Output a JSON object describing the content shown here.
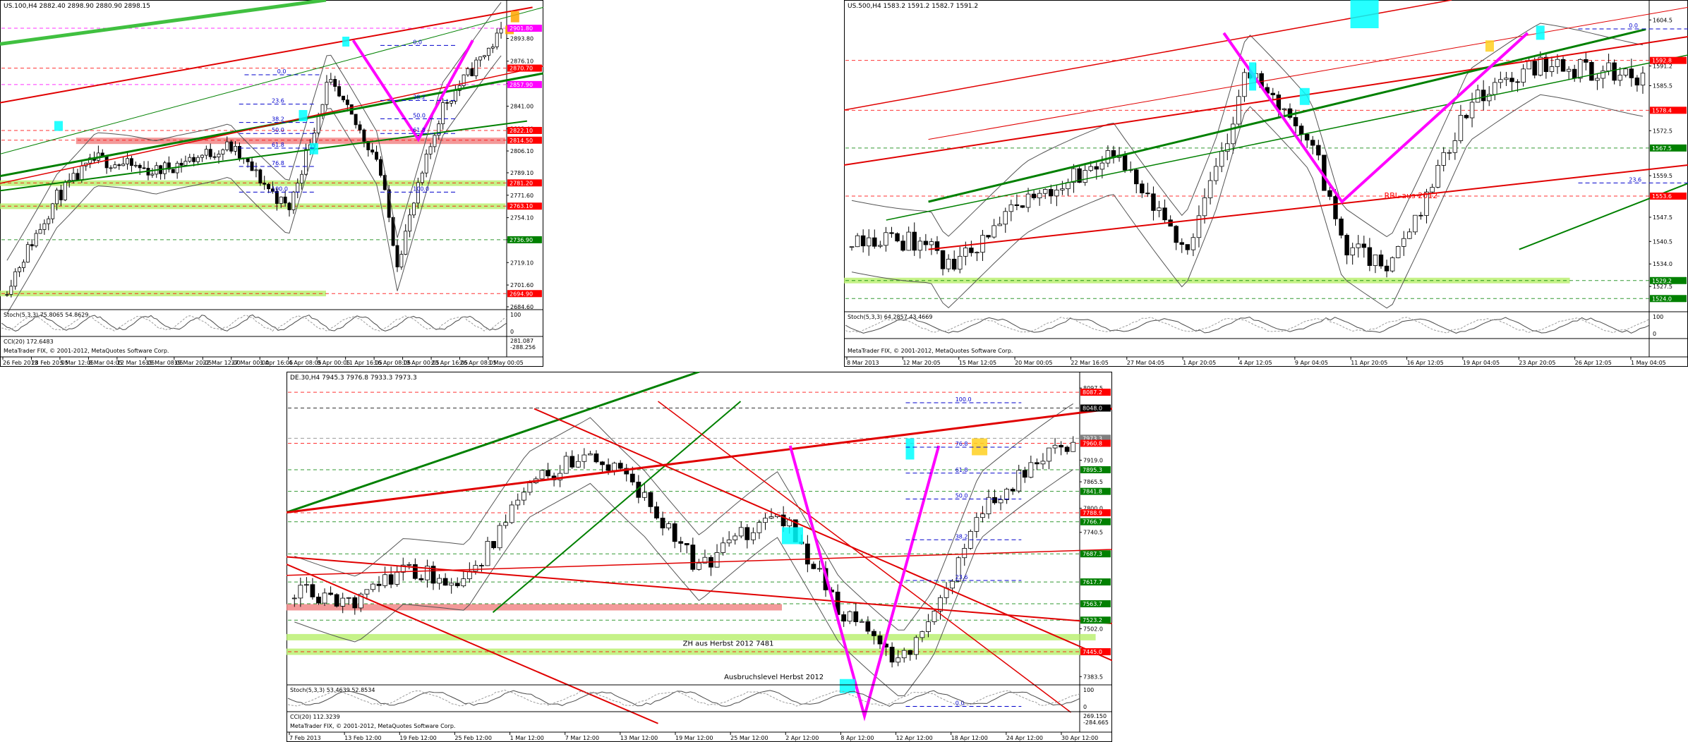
{
  "charts": [
    {
      "id": "us100",
      "header": "US.100,H4  2882.40 2898.90 2880.90 2898.15",
      "y_min": 2684.6,
      "y_max": 2915.0,
      "y_ticks": [
        "2893.80",
        "2876.10",
        "2858.60",
        "2841.00",
        "2823.40",
        "2806.10",
        "2789.10",
        "2771.60",
        "2754.10",
        "2736.90",
        "2719.10",
        "2701.60",
        "2684.60"
      ],
      "price_tags": [
        {
          "label": "2901.80",
          "value": 2901.8,
          "color": "#ff00ff"
        },
        {
          "label": "2870.70",
          "value": 2870.7,
          "color": "#ff0000"
        },
        {
          "label": "2857.90",
          "value": 2857.9,
          "color": "#ff00ff"
        },
        {
          "label": "2822.10",
          "value": 2822.1,
          "color": "#ff0000"
        },
        {
          "label": "2814.50",
          "value": 2814.5,
          "color": "#ff0000"
        },
        {
          "label": "2781.20",
          "value": 2781.2,
          "color": "#ff0000"
        },
        {
          "label": "2763.10",
          "value": 2763.1,
          "color": "#ff0000"
        },
        {
          "label": "2736.90",
          "value": 2736.9,
          "color": "#008000"
        },
        {
          "label": "2694.90",
          "value": 2694.9,
          "color": "#ff0000"
        }
      ],
      "fib_labels": [
        "0.0",
        "0.0",
        "23.6",
        "38.2",
        "50.0",
        "61.8",
        "76.8",
        "100.0",
        "100.0",
        "38.2",
        "50.0",
        "61.8"
      ],
      "x_labels": [
        "26 Feb 2013",
        "28 Feb 20:05",
        "5 Mar 12:05",
        "8 Mar 04:05",
        "12 Mar 16:05",
        "15 Mar 08:05",
        "19 Mar 20:05",
        "22 Mar 12:00",
        "27 Mar 00:00",
        "1 Apr 16:05",
        "4 Apr 08:05",
        "9 Apr 00:05",
        "11 Apr 16:05",
        "16 Apr 08:05",
        "19 Apr 00:05",
        "23 Apr 16:05",
        "26 Apr 08:05",
        "1 May 00:05"
      ],
      "stoch_label": "Stoch(5,3,3) 75.8065 54.8629",
      "stoch_ticks": [
        "100",
        "0"
      ],
      "cci_label": "CCI(20) 172.6483",
      "cci_ticks": [
        "281.087",
        "-288.256"
      ],
      "copyright": "MetaTrader FIX, © 2001-2012, MetaQuotes Software Corp."
    },
    {
      "id": "us500",
      "header": "US.500,H4  1583.2 1591.2 1582.7 1591.2",
      "y_min": 1521.0,
      "y_max": 1607.0,
      "y_ticks": [
        "1604.5",
        "1591.2",
        "1585.5",
        "1572.5",
        "1559.5",
        "1547.5",
        "1540.5",
        "1534.0",
        "1527.5"
      ],
      "price_tags": [
        {
          "label": "1592.8",
          "value": 1592.8,
          "color": "#ff0000"
        },
        {
          "label": "1578.4",
          "value": 1578.4,
          "color": "#ff0000"
        },
        {
          "label": "1567.5",
          "value": 1567.5,
          "color": "#008000"
        },
        {
          "label": "1553.6",
          "value": 1553.6,
          "color": "#ff0000"
        },
        {
          "label": "1529.2",
          "value": 1529.2,
          "color": "#008000"
        },
        {
          "label": "1524.0",
          "value": 1524.0,
          "color": "#008000"
        }
      ],
      "fib_labels": [
        "0.0",
        "23.6"
      ],
      "annotation": "RBL aus 2012",
      "x_labels": [
        "8 Mar 2013",
        "12 Mar 20:05",
        "15 Mar 12:05",
        "20 Mar 00:05",
        "22 Mar 16:05",
        "27 Mar 04:05",
        "1 Apr 20:05",
        "4 Apr 12:05",
        "9 Apr 04:05",
        "11 Apr 20:05",
        "16 Apr 12:05",
        "19 Apr 04:05",
        "23 Apr 20:05",
        "26 Apr 12:05",
        "1 May 04:05"
      ],
      "stoch_label": "Stoch(5,3,3) 64.2857 43.4669",
      "stoch_ticks": [
        "100",
        "0"
      ],
      "cci_label": "",
      "cci_ticks": [],
      "copyright": "MetaTrader FIX, © 2001-2012, MetaQuotes Software Corp."
    },
    {
      "id": "de30",
      "header": "DE.30,H4  7945.3 7976.8 7933.3 7973.3",
      "y_min": 7370.0,
      "y_max": 8110.0,
      "y_ticks": [
        "8097.5",
        "7919.0",
        "7865.5",
        "7800.0",
        "7740.5",
        "7502.0",
        "7383.5"
      ],
      "price_tags": [
        {
          "label": "8087.2",
          "value": 8087.2,
          "color": "#ff0000"
        },
        {
          "label": "8048.0",
          "value": 8048.0,
          "color": "#000000"
        },
        {
          "label": "7973.3",
          "value": 7973.3,
          "color": "#808080"
        },
        {
          "label": "7960.8",
          "value": 7960.8,
          "color": "#ff0000"
        },
        {
          "label": "7895.3",
          "value": 7895.3,
          "color": "#008000"
        },
        {
          "label": "7841.8",
          "value": 7841.8,
          "color": "#008000"
        },
        {
          "label": "7788.9",
          "value": 7788.9,
          "color": "#ff0000"
        },
        {
          "label": "7766.7",
          "value": 7766.7,
          "color": "#008000"
        },
        {
          "label": "7687.3",
          "value": 7687.3,
          "color": "#008000"
        },
        {
          "label": "7617.7",
          "value": 7617.7,
          "color": "#008000"
        },
        {
          "label": "7563.7",
          "value": 7563.7,
          "color": "#008000"
        },
        {
          "label": "7523.2",
          "value": 7523.2,
          "color": "#008000"
        },
        {
          "label": "7445.0",
          "value": 7445.0,
          "color": "#ff0000"
        }
      ],
      "fib_labels": [
        "100.0",
        "76.8",
        "61.8",
        "50.0",
        "38.2",
        "23.6",
        "0.0"
      ],
      "annotations": [
        "ZH aus Herbst 2012 7481",
        "Ausbruchslevel Herbst 2012"
      ],
      "x_labels": [
        "7 Feb 2013",
        "13 Feb 12:00",
        "19 Feb 12:00",
        "25 Feb 12:00",
        "1 Mar 12:00",
        "7 Mar 12:00",
        "13 Mar 12:00",
        "19 Mar 12:00",
        "25 Mar 12:00",
        "2 Apr 12:00",
        "8 Apr 12:00",
        "12 Apr 12:00",
        "18 Apr 12:00",
        "24 Apr 12:00",
        "30 Apr 12:00"
      ],
      "stoch_label": "Stoch(5,3,3) 53.4639 52.8534",
      "stoch_ticks": [
        "100",
        "0"
      ],
      "cci_label": "CCI(20) 112.3239",
      "cci_ticks": [
        "269.150",
        "-284.665"
      ],
      "copyright": "MetaTrader FIX, © 2001-2012, MetaQuotes Software Corp."
    }
  ]
}
